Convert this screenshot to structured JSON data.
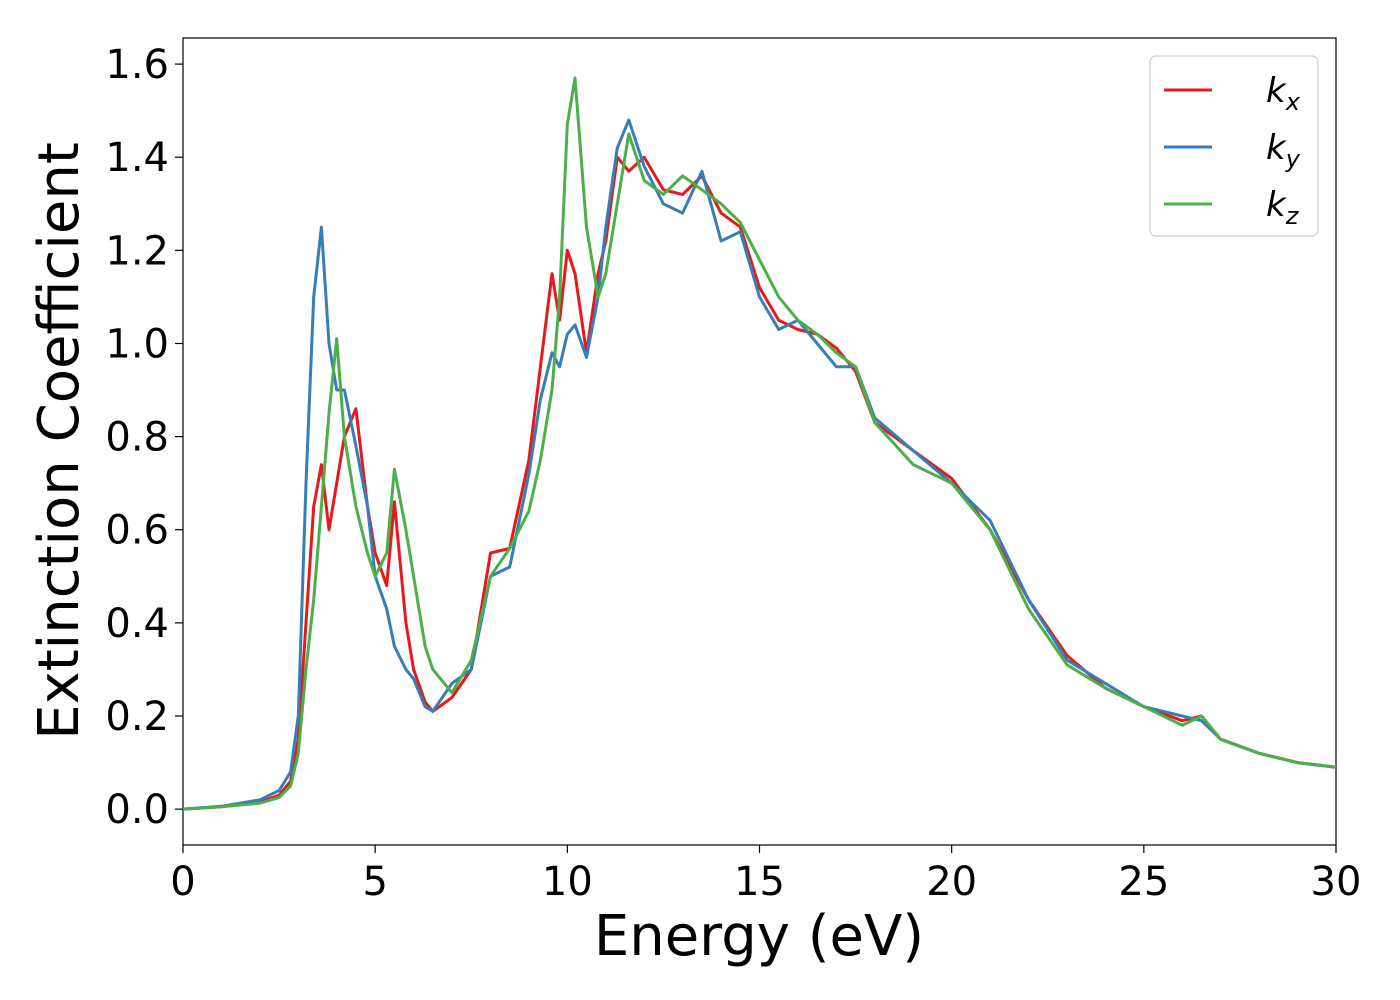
{
  "chart_data": {
    "type": "line",
    "xlabel": "Energy (eV)",
    "ylabel": "Extinction Coefficient",
    "x": [
      0,
      1,
      2,
      2.5,
      2.8,
      3,
      3.2,
      3.4,
      3.6,
      3.8,
      4,
      4.2,
      4.5,
      4.8,
      5,
      5.3,
      5.5,
      5.8,
      6,
      6.3,
      6.5,
      7,
      7.5,
      8,
      8.5,
      9,
      9.3,
      9.6,
      9.8,
      10,
      10.2,
      10.5,
      10.8,
      11,
      11.3,
      11.6,
      12,
      12.5,
      13,
      13.5,
      14,
      14.5,
      15,
      15.5,
      16,
      16.5,
      17,
      17.5,
      18,
      19,
      20,
      21,
      22,
      23,
      24,
      25,
      26,
      26.5,
      27,
      28,
      29,
      30
    ],
    "series": [
      {
        "name": "kx",
        "color": "#e41a1c",
        "values": [
          0,
          0.005,
          0.015,
          0.03,
          0.06,
          0.15,
          0.4,
          0.65,
          0.74,
          0.6,
          0.7,
          0.8,
          0.86,
          0.65,
          0.55,
          0.48,
          0.66,
          0.4,
          0.3,
          0.23,
          0.21,
          0.24,
          0.3,
          0.55,
          0.56,
          0.75,
          0.95,
          1.15,
          1.05,
          1.2,
          1.15,
          0.98,
          1.15,
          1.22,
          1.4,
          1.37,
          1.4,
          1.33,
          1.32,
          1.36,
          1.28,
          1.25,
          1.12,
          1.05,
          1.03,
          1.02,
          0.99,
          0.94,
          0.83,
          0.77,
          0.71,
          0.6,
          0.45,
          0.33,
          0.26,
          0.22,
          0.19,
          0.2,
          0.15,
          0.12,
          0.1,
          0.09
        ]
      },
      {
        "name": "ky",
        "color": "#377eb8",
        "values": [
          0,
          0.006,
          0.02,
          0.04,
          0.08,
          0.2,
          0.7,
          1.1,
          1.25,
          1.0,
          0.9,
          0.9,
          0.78,
          0.65,
          0.5,
          0.43,
          0.35,
          0.3,
          0.28,
          0.22,
          0.21,
          0.27,
          0.3,
          0.5,
          0.52,
          0.72,
          0.88,
          0.98,
          0.95,
          1.02,
          1.04,
          0.97,
          1.1,
          1.25,
          1.42,
          1.48,
          1.38,
          1.3,
          1.28,
          1.37,
          1.22,
          1.24,
          1.1,
          1.03,
          1.05,
          1.0,
          0.95,
          0.95,
          0.84,
          0.77,
          0.7,
          0.62,
          0.45,
          0.32,
          0.27,
          0.22,
          0.2,
          0.19,
          0.15,
          0.12,
          0.1,
          0.09
        ]
      },
      {
        "name": "kz",
        "color": "#4daf4a",
        "values": [
          0,
          0.005,
          0.013,
          0.025,
          0.05,
          0.12,
          0.3,
          0.45,
          0.65,
          0.85,
          1.01,
          0.8,
          0.65,
          0.55,
          0.5,
          0.55,
          0.73,
          0.6,
          0.5,
          0.35,
          0.3,
          0.25,
          0.32,
          0.5,
          0.56,
          0.64,
          0.75,
          0.9,
          1.1,
          1.47,
          1.57,
          1.25,
          1.1,
          1.15,
          1.3,
          1.45,
          1.35,
          1.32,
          1.36,
          1.33,
          1.3,
          1.26,
          1.18,
          1.1,
          1.05,
          1.02,
          0.98,
          0.95,
          0.83,
          0.74,
          0.7,
          0.6,
          0.43,
          0.31,
          0.26,
          0.22,
          0.18,
          0.2,
          0.15,
          0.12,
          0.1,
          0.09
        ]
      }
    ],
    "xlim": [
      0,
      30
    ],
    "xticks": [
      0,
      5,
      10,
      15,
      20,
      25,
      30
    ],
    "ylim": [
      -0.077,
      1.656
    ],
    "yticks": [
      {
        "value": 0,
        "label": "0.0"
      },
      0.2,
      0.4,
      0.6,
      0.8,
      {
        "value": 1,
        "label": "1.0"
      },
      1.2,
      1.4,
      1.6
    ],
    "legend": "upper right",
    "grid": false
  }
}
